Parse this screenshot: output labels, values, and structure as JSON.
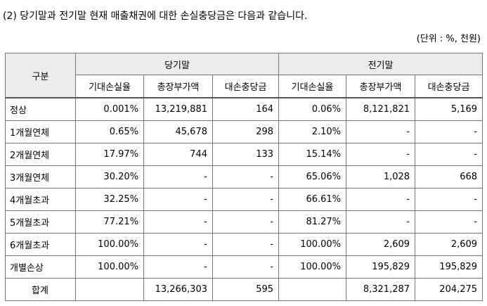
{
  "heading": "(2) 당기말과 전기말 현재 매출채권에 대한 손실충당금은 다음과 같습니다.",
  "unit": "(단위 : %, 천원)",
  "table": {
    "header": {
      "category": "구분",
      "current_period": "당기말",
      "prior_period": "전기말",
      "sub": [
        "기대손실율",
        "총장부가액",
        "대손충당금",
        "기대손실율",
        "총장부가액",
        "대손충당금"
      ]
    },
    "rows": [
      {
        "label": "정상",
        "c1": "0.001%",
        "c2": "13,219,881",
        "c3": "164",
        "p1": "0.06%",
        "p2": "8,121,821",
        "p3": "5,169"
      },
      {
        "label": "1개월연체",
        "c1": "0.65%",
        "c2": "45,678",
        "c3": "298",
        "p1": "2.10%",
        "p2": "-",
        "p3": "-"
      },
      {
        "label": "2개월연체",
        "c1": "17.97%",
        "c2": "744",
        "c3": "133",
        "p1": "15.14%",
        "p2": "-",
        "p3": "-"
      },
      {
        "label": "3개월연체",
        "c1": "30.20%",
        "c2": "-",
        "c3": "-",
        "p1": "65.06%",
        "p2": "1,028",
        "p3": "668"
      },
      {
        "label": "4개월초과",
        "c1": "32.25%",
        "c2": "-",
        "c3": "-",
        "p1": "66.61%",
        "p2": "-",
        "p3": "-"
      },
      {
        "label": "5개월초과",
        "c1": "77.21%",
        "c2": "-",
        "c3": "-",
        "p1": "81.27%",
        "p2": "-",
        "p3": "-"
      },
      {
        "label": "6개월초과",
        "c1": "100.00%",
        "c2": "-",
        "c3": "-",
        "p1": "100.00%",
        "p2": "2,609",
        "p3": "2,609"
      },
      {
        "label": "개별손상",
        "c1": "100.00%",
        "c2": "-",
        "c3": "-",
        "p1": "100.00%",
        "p2": "195,829",
        "p3": "195,829"
      }
    ],
    "total": {
      "label": "합계",
      "c1": "",
      "c2": "13,266,303",
      "c3": "595",
      "p1": "",
      "p2": "8,321,287",
      "p3": "204,275"
    }
  }
}
